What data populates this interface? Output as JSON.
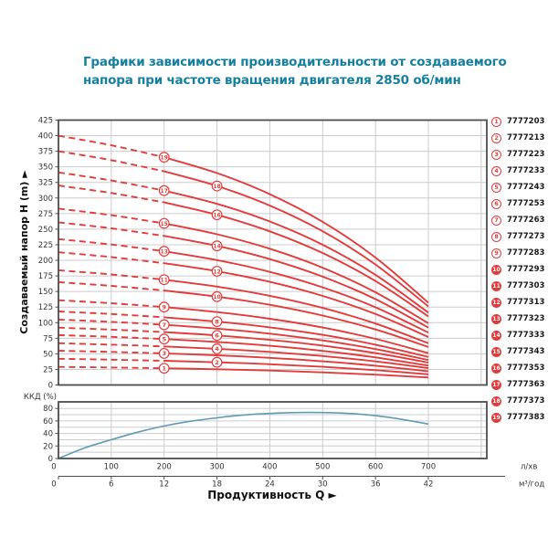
{
  "title": {
    "line1": "Графики зависимости производительности от создаваемого",
    "line2": "напора при частоте вращения двигателя 2850 об/мин"
  },
  "legend": {
    "items": [
      {
        "num": 1,
        "code": "7777203"
      },
      {
        "num": 2,
        "code": "7777213"
      },
      {
        "num": 3,
        "code": "7777223"
      },
      {
        "num": 4,
        "code": "7777233"
      },
      {
        "num": 5,
        "code": "7777243"
      },
      {
        "num": 6,
        "code": "7777253"
      },
      {
        "num": 7,
        "code": "7777263"
      },
      {
        "num": 8,
        "code": "7777273"
      },
      {
        "num": 9,
        "code": "7777283"
      },
      {
        "num": 10,
        "code": "7777293"
      },
      {
        "num": 11,
        "code": "7777303"
      },
      {
        "num": 12,
        "code": "7777313"
      },
      {
        "num": 13,
        "code": "7777323"
      },
      {
        "num": 14,
        "code": "7777333"
      },
      {
        "num": 15,
        "code": "7777343"
      },
      {
        "num": 16,
        "code": "7777353"
      },
      {
        "num": 17,
        "code": "7777363"
      },
      {
        "num": 18,
        "code": "7777373"
      },
      {
        "num": 19,
        "code": "7777383"
      }
    ]
  },
  "axes": {
    "y_label": "Создаваемый напор H (m) ►",
    "x_label": "Продуктивность Q ►",
    "eff_label": "ККД (%)",
    "h_ticks": [
      0,
      25,
      50,
      75,
      100,
      125,
      150,
      175,
      200,
      225,
      250,
      275,
      300,
      325,
      350,
      375,
      400,
      425
    ],
    "eff_ticks": [
      0,
      20,
      40,
      60,
      80
    ],
    "q_lmin_ticks": [
      0,
      100,
      200,
      300,
      400,
      500,
      600,
      700
    ],
    "q_m3h_ticks": [
      0,
      6,
      12,
      18,
      24,
      30,
      36,
      42
    ],
    "unit_lmin": "л/хв",
    "unit_m3h": "м³/год"
  },
  "chart_data": [
    {
      "type": "line",
      "name": "head_vs_flow",
      "title": "H–Q curves for pumps 1–19, 2850 rpm",
      "xlabel": "Продуктивность Q (л/хв)",
      "ylabel": "Создаваемый напор H (m)",
      "xlim": [
        0,
        810
      ],
      "ylim": [
        0,
        425
      ],
      "grid": true,
      "dashed_until_q": 200,
      "q_samples": [
        0,
        100,
        200,
        300,
        400,
        500,
        600,
        700
      ],
      "series": [
        {
          "curve": 1,
          "code": "7777203",
          "marker_q": 200,
          "heads": [
            29,
            28.0,
            26.8,
            25.2,
            23.1,
            20.2,
            16.6,
            12
          ]
        },
        {
          "curve": 2,
          "code": "7777213",
          "marker_q": 300,
          "heads": [
            42,
            40.6,
            38.8,
            36.4,
            33.3,
            29.1,
            23.8,
            17
          ]
        },
        {
          "curve": 3,
          "code": "7777223",
          "marker_q": 200,
          "heads": [
            55,
            53.1,
            50.7,
            47.6,
            43.5,
            38.0,
            30.9,
            22
          ]
        },
        {
          "curve": 4,
          "code": "7777233",
          "marker_q": 300,
          "heads": [
            67,
            64.7,
            61.8,
            58.0,
            53.0,
            46.4,
            37.8,
            27
          ]
        },
        {
          "curve": 5,
          "code": "7777243",
          "marker_q": 200,
          "heads": [
            80,
            77.2,
            73.7,
            69.0,
            62.9,
            54.7,
            44.2,
            31
          ]
        },
        {
          "curve": 6,
          "code": "7777253",
          "marker_q": 300,
          "heads": [
            92,
            88.8,
            84.8,
            79.5,
            72.4,
            63.1,
            51.1,
            36
          ]
        },
        {
          "curve": 7,
          "code": "7777263",
          "marker_q": 200,
          "heads": [
            105,
            101.3,
            96.6,
            90.4,
            82.3,
            71.5,
            57.6,
            40
          ]
        },
        {
          "curve": 8,
          "code": "7777273",
          "marker_q": 300,
          "heads": [
            118,
            113.8,
            108.6,
            101.7,
            92.5,
            80.4,
            64.7,
            45
          ]
        },
        {
          "curve": 9,
          "code": "7777283",
          "marker_q": 200,
          "heads": [
            136,
            131.1,
            125.0,
            117.0,
            106.3,
            92.2,
            74.0,
            51
          ]
        },
        {
          "curve": 10,
          "code": "7777293",
          "marker_q": 300,
          "heads": [
            165,
            159.0,
            151.6,
            141.7,
            128.6,
            111.4,
            89.1,
            61
          ]
        },
        {
          "curve": 11,
          "code": "7777303",
          "marker_q": 200,
          "heads": [
            184,
            177.3,
            168.9,
            157.8,
            143.1,
            123.7,
            98.6,
            67
          ]
        },
        {
          "curve": 12,
          "code": "7777313",
          "marker_q": 300,
          "heads": [
            213,
            205.2,
            195.4,
            182.5,
            165.4,
            142.9,
            113.8,
            77
          ]
        },
        {
          "curve": 13,
          "code": "7777323",
          "marker_q": 200,
          "heads": [
            234,
            225.4,
            214.6,
            200.4,
            181.5,
            156.6,
            124.6,
            84
          ]
        },
        {
          "curve": 14,
          "code": "7777333",
          "marker_q": 300,
          "heads": [
            261,
            251.3,
            239.2,
            223.2,
            201.9,
            173.8,
            137.7,
            92
          ]
        },
        {
          "curve": 15,
          "code": "7777343",
          "marker_q": 200,
          "heads": [
            283,
            272.5,
            259.2,
            241.8,
            218.6,
            188.1,
            148.7,
            99
          ]
        },
        {
          "curve": 16,
          "code": "7777353",
          "marker_q": 300,
          "heads": [
            320,
            308.0,
            292.9,
            273.0,
            246.5,
            211.7,
            166.8,
            110
          ]
        },
        {
          "curve": 17,
          "code": "7777363",
          "marker_q": 200,
          "heads": [
            341,
            328.1,
            311.9,
            290.6,
            262.3,
            225.0,
            176.8,
            116
          ]
        },
        {
          "curve": 18,
          "code": "7777373",
          "marker_q": 300,
          "heads": [
            375,
            360.7,
            342.8,
            319.3,
            287.9,
            246.6,
            193.3,
            126
          ]
        },
        {
          "curve": 19,
          "code": "7777383",
          "marker_q": 200,
          "heads": [
            400,
            384.6,
            365.4,
            340.0,
            306.2,
            261.8,
            204.5,
            132
          ]
        }
      ]
    },
    {
      "type": "line",
      "name": "efficiency",
      "title": "ККД (%) vs Q",
      "ylabel": "ККД (%)",
      "xlim": [
        0,
        810
      ],
      "ylim": [
        0,
        87
      ],
      "grid": true,
      "points": [
        [
          0,
          0
        ],
        [
          50,
          17
        ],
        [
          100,
          30
        ],
        [
          150,
          42
        ],
        [
          200,
          52
        ],
        [
          250,
          59.5
        ],
        [
          300,
          65
        ],
        [
          350,
          69.5
        ],
        [
          400,
          72
        ],
        [
          450,
          73.5
        ],
        [
          500,
          73.5
        ],
        [
          550,
          72
        ],
        [
          600,
          68.5
        ],
        [
          650,
          62.5
        ],
        [
          700,
          55
        ]
      ]
    }
  ],
  "colors": {
    "title": "#157f9f",
    "curve_red": "#e23b3b",
    "efficiency_blue": "#5f9bb4",
    "grid": "#cccccc",
    "border": "#4d4d4d",
    "text": "#333333"
  }
}
